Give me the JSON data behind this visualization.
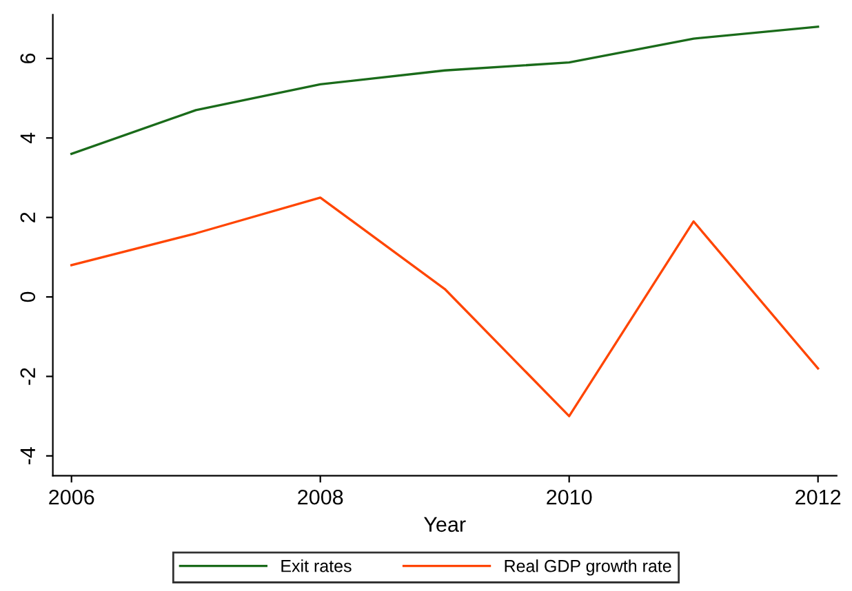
{
  "chart_data": {
    "type": "line",
    "xlabel": "Year",
    "x": [
      2006,
      2007,
      2008,
      2009,
      2010,
      2011,
      2012
    ],
    "series": [
      {
        "name": "Exit rates",
        "color": "#1a6b1a",
        "values": [
          3.6,
          4.7,
          5.35,
          5.7,
          5.9,
          6.5,
          6.8
        ]
      },
      {
        "name": "Real GDP growth rate",
        "color": "#ff4500",
        "values": [
          0.8,
          1.6,
          2.5,
          0.2,
          -3.0,
          1.9,
          -1.8
        ]
      }
    ],
    "xlim": [
      2005.85,
      2012.15
    ],
    "ylim": [
      -4.5,
      7.1
    ],
    "xticks": [
      2006,
      2008,
      2010,
      2012
    ],
    "yticks": [
      -4,
      -2,
      0,
      2,
      4,
      6
    ],
    "grid": false,
    "legend": "bottom",
    "marker": "none",
    "line_style": "solid"
  }
}
